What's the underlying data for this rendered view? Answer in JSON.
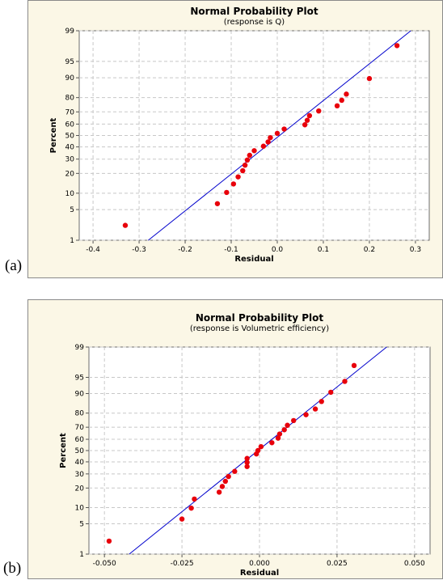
{
  "chart_data": [
    {
      "panel_label": "(a)",
      "type": "scatter",
      "title": "Normal Probability Plot",
      "subtitle": "(response is Q)",
      "xlabel": "Residual",
      "ylabel": "Percent",
      "xlim": [
        -0.43,
        0.33
      ],
      "xticks": [
        -0.4,
        -0.3,
        -0.2,
        -0.1,
        0.0,
        0.1,
        0.2,
        0.3
      ],
      "xtick_labels": [
        "-0.4",
        "-0.3",
        "-0.2",
        "-0.1",
        "0.0",
        "0.1",
        "0.2",
        "0.3"
      ],
      "y_scale": "normal-probability",
      "ylim": [
        1,
        99
      ],
      "yticks": [
        1,
        5,
        10,
        20,
        30,
        40,
        50,
        60,
        70,
        80,
        90,
        95,
        99
      ],
      "ytick_labels": [
        "1",
        "5",
        "10",
        "20",
        "30",
        "40",
        "50",
        "60",
        "70",
        "80",
        "90",
        "95",
        "99"
      ],
      "grid": true,
      "point_color": "#e8000b",
      "line_color": "#0000cc",
      "fit_line": {
        "x": [
          -0.28,
          0.29
        ],
        "y": [
          1,
          99
        ]
      },
      "points": [
        {
          "x": -0.33,
          "y": 2.3
        },
        {
          "x": -0.13,
          "y": 6.5
        },
        {
          "x": -0.11,
          "y": 10.3
        },
        {
          "x": -0.095,
          "y": 14.1
        },
        {
          "x": -0.085,
          "y": 17.9
        },
        {
          "x": -0.075,
          "y": 21.7
        },
        {
          "x": -0.07,
          "y": 25.5
        },
        {
          "x": -0.065,
          "y": 29.3
        },
        {
          "x": -0.06,
          "y": 33.0
        },
        {
          "x": -0.05,
          "y": 36.8
        },
        {
          "x": -0.03,
          "y": 40.6
        },
        {
          "x": -0.02,
          "y": 44.3
        },
        {
          "x": -0.015,
          "y": 48.1
        },
        {
          "x": 0.0,
          "y": 51.9
        },
        {
          "x": 0.015,
          "y": 55.7
        },
        {
          "x": 0.06,
          "y": 59.4
        },
        {
          "x": 0.065,
          "y": 63.2
        },
        {
          "x": 0.07,
          "y": 67.0
        },
        {
          "x": 0.09,
          "y": 70.7
        },
        {
          "x": 0.13,
          "y": 74.5
        },
        {
          "x": 0.14,
          "y": 78.3
        },
        {
          "x": 0.15,
          "y": 82.1
        },
        {
          "x": 0.2,
          "y": 89.7
        },
        {
          "x": 0.26,
          "y": 97.7
        }
      ]
    },
    {
      "panel_label": "(b)",
      "type": "scatter",
      "title": "Normal Probability Plot",
      "subtitle": "(response is Volumetric efficiency)",
      "xlabel": "Residual",
      "ylabel": "Percent",
      "xlim": [
        -0.055,
        0.055
      ],
      "xticks": [
        -0.05,
        -0.025,
        0.0,
        0.025,
        0.05
      ],
      "xtick_labels": [
        "-0.050",
        "-0.025",
        "0.000",
        "0.025",
        "0.050"
      ],
      "y_scale": "normal-probability",
      "ylim": [
        1,
        99
      ],
      "yticks": [
        1,
        5,
        10,
        20,
        30,
        40,
        50,
        60,
        70,
        80,
        90,
        95,
        99
      ],
      "ytick_labels": [
        "1",
        "5",
        "10",
        "20",
        "30",
        "40",
        "50",
        "60",
        "70",
        "80",
        "90",
        "95",
        "99"
      ],
      "grid": true,
      "point_color": "#e8000b",
      "line_color": "#0000cc",
      "fit_line": {
        "x": [
          -0.042,
          0.041
        ],
        "y": [
          1,
          99
        ]
      },
      "points": [
        {
          "x": -0.0485,
          "y": 2.1
        },
        {
          "x": -0.025,
          "y": 6.2
        },
        {
          "x": -0.022,
          "y": 9.8
        },
        {
          "x": -0.021,
          "y": 13.8
        },
        {
          "x": -0.013,
          "y": 17.5
        },
        {
          "x": -0.012,
          "y": 21.0
        },
        {
          "x": -0.011,
          "y": 24.5
        },
        {
          "x": -0.01,
          "y": 28.0
        },
        {
          "x": -0.008,
          "y": 32.0
        },
        {
          "x": -0.004,
          "y": 36.0
        },
        {
          "x": -0.004,
          "y": 39.5
        },
        {
          "x": -0.004,
          "y": 43.0
        },
        {
          "x": -0.001,
          "y": 47.0
        },
        {
          "x": -0.0005,
          "y": 50.0
        },
        {
          "x": 0.0005,
          "y": 53.5
        },
        {
          "x": 0.004,
          "y": 57.0
        },
        {
          "x": 0.006,
          "y": 61.0
        },
        {
          "x": 0.0065,
          "y": 64.5
        },
        {
          "x": 0.008,
          "y": 68.0
        },
        {
          "x": 0.009,
          "y": 71.5
        },
        {
          "x": 0.011,
          "y": 75.0
        },
        {
          "x": 0.015,
          "y": 79.0
        },
        {
          "x": 0.018,
          "y": 82.5
        },
        {
          "x": 0.02,
          "y": 86.5
        },
        {
          "x": 0.023,
          "y": 90.5
        },
        {
          "x": 0.0275,
          "y": 94.0
        },
        {
          "x": 0.0305,
          "y": 97.2
        }
      ]
    }
  ]
}
